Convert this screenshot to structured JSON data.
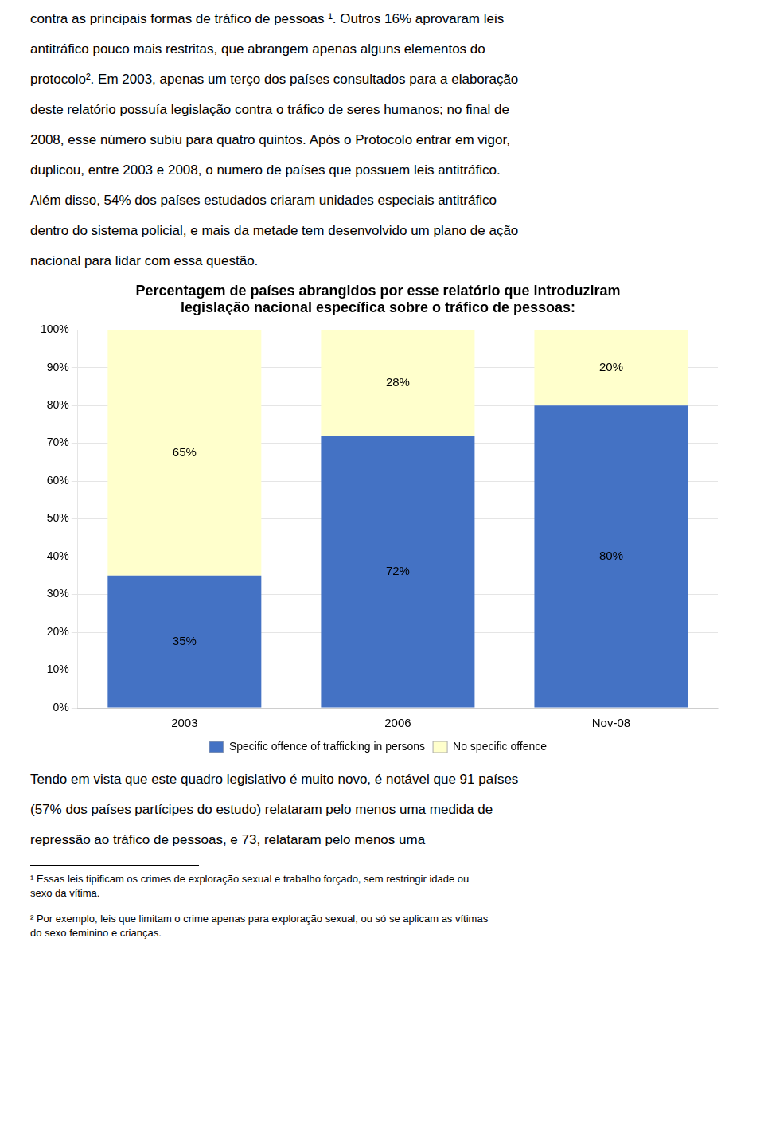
{
  "chart_data": {
    "type": "bar",
    "title": [
      "Percentagem de países abrangidos por esse relatório que introduziram",
      "legislação nacional específica sobre o tráfico de pessoas:"
    ],
    "categories": [
      "2003",
      "2006",
      "Nov-08"
    ],
    "series": [
      {
        "name": "Specific offence of trafficking in persons",
        "color": "#4472C4",
        "values": [
          35,
          72,
          80
        ],
        "value_labels": [
          "35%",
          "72%",
          "80%"
        ]
      },
      {
        "name": "No specific offence",
        "color": "#FFFFCC",
        "values": [
          65,
          28,
          20
        ],
        "value_labels": [
          "65%",
          "28%",
          "20%"
        ]
      }
    ],
    "stacked": true,
    "data_labels": true,
    "ylim": [
      0,
      100
    ],
    "yticks": [
      {
        "value": 0,
        "label": "0%"
      },
      {
        "value": 10,
        "label": "10%"
      },
      {
        "value": 20,
        "label": "20%"
      },
      {
        "value": 30,
        "label": "30%"
      },
      {
        "value": 40,
        "label": "40%"
      },
      {
        "value": 50,
        "label": "50%"
      },
      {
        "value": 60,
        "label": "60%"
      },
      {
        "value": 70,
        "label": "70%"
      },
      {
        "value": 80,
        "label": "80%"
      },
      {
        "value": 90,
        "label": "90%"
      },
      {
        "value": 100,
        "label": "100%"
      }
    ],
    "grid": true,
    "legend": "bottom",
    "text_above": [
      "contra as principais formas de tráfico de pessoas ¹. Outros 16% aprovaram leis",
      "antitráfico pouco mais restritas, que abrangem apenas alguns elementos do",
      "protocolo². Em 2003, apenas um terço dos países consultados para a elaboração",
      "deste relatório possuía legislação contra o tráfico de seres humanos; no final de",
      "2008, esse número subiu para quatro quintos. Após o Protocolo entrar em vigor,",
      "duplicou, entre 2003 e 2008, o numero de países que possuem leis antitráfico.",
      "Além disso, 54% dos países estudados criaram unidades especiais antitráfico",
      "dentro do sistema policial, e mais da metade tem desenvolvido um plano de ação",
      "nacional para lidar com essa questão."
    ],
    "text_below": [
      "Tendo em vista que este quadro legislativo é muito novo, é notável que 91 países",
      "(57% dos países partícipes do estudo) relataram pelo menos uma medida de",
      "repressão ao tráfico de pessoas, e 73, relataram pelo menos uma"
    ],
    "footnotes": [
      "¹ Essas leis tipificam os crimes de exploração sexual e trabalho forçado, sem restringir idade ou\nsexo da vítima.",
      "² Por exemplo, leis que limitam o crime apenas para exploração sexual, ou só se aplicam as vítimas\ndo sexo feminino e crianças."
    ]
  }
}
